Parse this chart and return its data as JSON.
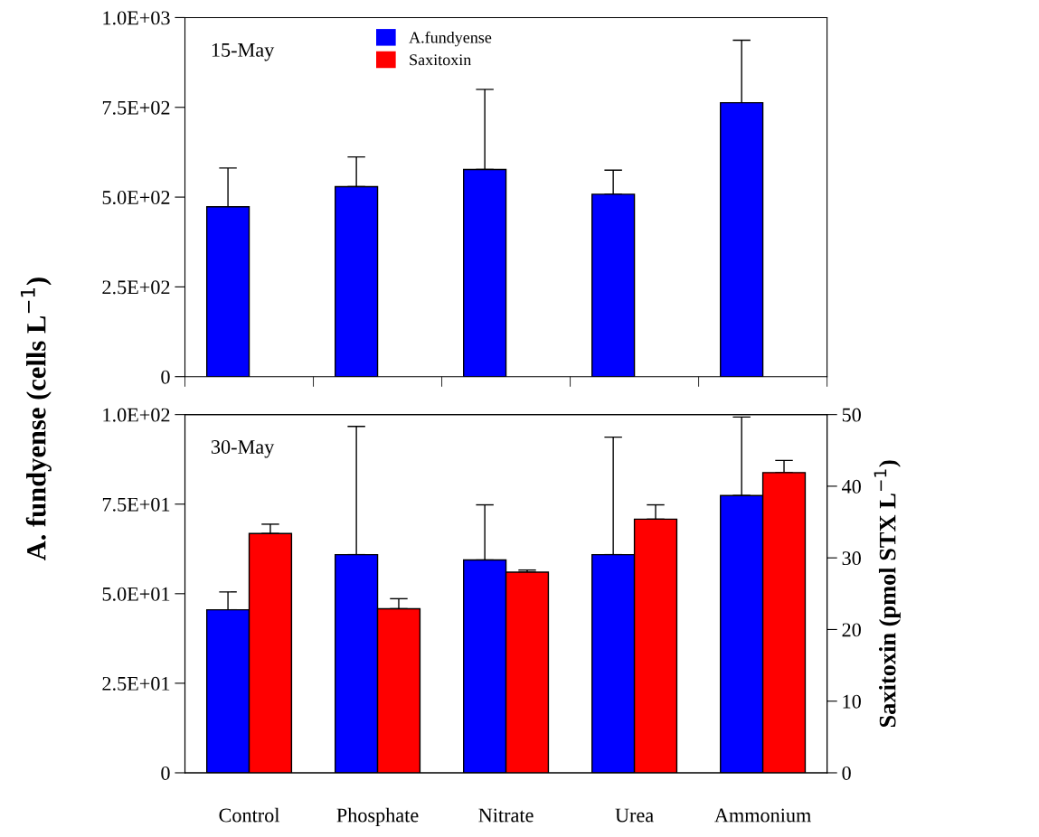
{
  "chart_data": [
    {
      "type": "bar",
      "categories": [
        null,
        null,
        null,
        null,
        null
      ],
      "ylabel": "A. fundyense (cells L$^{−1}$)",
      "series": [
        {
          "name": "A.fundyense",
          "color": "#0000ff",
          "values": [
            473,
            529,
            577,
            508,
            763
          ],
          "errors": [
            [
              473,
              581
            ],
            [
              529,
              612
            ],
            [
              577,
              800
            ],
            [
              508,
              575
            ],
            [
              763,
              937
            ]
          ]
        },
        {
          "name": "Saxitoxin",
          "color": "#ff0000",
          "values": [
            null,
            null,
            null,
            null,
            null
          ]
        }
      ],
      "ylim": [
        0,
        1000
      ],
      "yticks": [
        0,
        {
          "value": 250,
          "label": "2.5E+02"
        },
        {
          "value": 500,
          "label": "5.0E+02"
        },
        {
          "value": 750,
          "label": "7.5E+02"
        },
        {
          "value": 1000,
          "label": "1.0E+03"
        }
      ],
      "annotations": [
        "15-May"
      ],
      "legend": "top",
      "tick_labels": "y",
      "grid": false
    },
    {
      "type": "bar",
      "categories": [
        "Control",
        "Phosphate",
        "Nitrate",
        "Urea",
        "Ammonium"
      ],
      "y2label": "Saxitoxin (pmol STX L$^{−1}$)",
      "series": [
        {
          "color": "#0000ff",
          "values": [
            45.5,
            60.9,
            59.4,
            60.9,
            77.4
          ],
          "errors": [
            [
              45.5,
              50.5
            ],
            [
              60.9,
              96.7
            ],
            [
              59.4,
              74.8
            ],
            [
              60.9,
              93.7
            ],
            [
              77.4,
              99.3
            ]
          ]
        },
        {
          "color": "#ff0000",
          "axis": "y2",
          "values": [
            33.4,
            22.9,
            28.0,
            35.4,
            41.9
          ],
          "errors": [
            [
              33.4,
              34.7
            ],
            [
              22.9,
              24.3
            ],
            [
              28.0,
              28.3
            ],
            [
              35.4,
              37.4
            ],
            [
              41.9,
              43.6
            ]
          ]
        }
      ],
      "ylim": [
        0,
        100
      ],
      "yticks": [
        0,
        {
          "value": 25,
          "label": "2.5E+01"
        },
        {
          "value": 50,
          "label": "5.0E+01"
        },
        {
          "value": 75,
          "label": "7.5E+01"
        },
        {
          "value": 100,
          "label": "1.0E+02"
        }
      ],
      "y2lim": [
        0,
        50
      ],
      "y2ticks": [
        0,
        10,
        20,
        30,
        40,
        50
      ],
      "annotations": [
        "30-May"
      ],
      "legend": false,
      "grid": false
    }
  ]
}
